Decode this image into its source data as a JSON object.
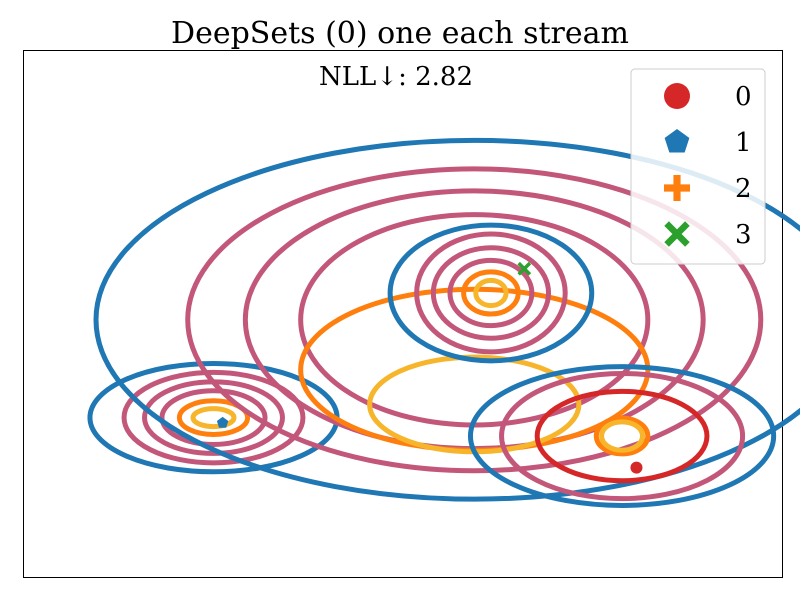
{
  "chart_data": {
    "type": "scatter",
    "title": "DeepSets (0) one each stream",
    "subtitle": "NLL↓: 2.82",
    "grid": false,
    "legend_position": "top-right",
    "legend": [
      {
        "label": "0",
        "marker": "circle",
        "color": "#d62728"
      },
      {
        "label": "1",
        "marker": "pentagon",
        "color": "#1f77b4"
      },
      {
        "label": "2",
        "marker": "plus",
        "color": "#ff7f0e"
      },
      {
        "label": "3",
        "marker": "x",
        "color": "#2ca02c"
      }
    ],
    "points": [
      {
        "series": "0",
        "x": 0.808,
        "y": 0.208
      },
      {
        "series": "1",
        "x": 0.262,
        "y": 0.293
      },
      {
        "series": "3",
        "x": 0.66,
        "y": 0.586
      }
    ],
    "contour_groups": [
      {
        "cx": 0.25,
        "cy": 0.303,
        "rings": [
          {
            "rx": 0.163,
            "ry": 0.103,
            "color": "#1f77b4"
          },
          {
            "rx": 0.118,
            "ry": 0.086,
            "color": "#c2577a"
          },
          {
            "rx": 0.091,
            "ry": 0.068,
            "color": "#c2577a"
          },
          {
            "rx": 0.068,
            "ry": 0.051,
            "color": "#c2577a"
          },
          {
            "rx": 0.045,
            "ry": 0.032,
            "color": "#ff7f0e"
          },
          {
            "rx": 0.027,
            "ry": 0.017,
            "color": "#f7b52c"
          }
        ]
      },
      {
        "cx": 0.594,
        "cy": 0.489,
        "rings": [
          {
            "rx": 0.499,
            "ry": 0.341,
            "color": "#1f77b4"
          },
          {
            "rx": 0.378,
            "ry": 0.287,
            "color": "#c2577a"
          },
          {
            "rx": 0.302,
            "ry": 0.245,
            "color": "#c2577a"
          },
          {
            "rx": 0.229,
            "ry": 0.2,
            "color": "#c2577a"
          }
        ]
      },
      {
        "cx": 0.594,
        "cy": 0.394,
        "rings": [
          {
            "rx": 0.229,
            "ry": 0.153,
            "color": "#ff7f0e"
          }
        ]
      },
      {
        "cx": 0.594,
        "cy": 0.328,
        "rings": [
          {
            "rx": 0.138,
            "ry": 0.09,
            "color": "#f7b52c"
          }
        ]
      },
      {
        "cx": 0.616,
        "cy": 0.54,
        "rings": [
          {
            "rx": 0.133,
            "ry": 0.129,
            "color": "#1f77b4"
          },
          {
            "rx": 0.098,
            "ry": 0.112,
            "color": "#c2577a"
          },
          {
            "rx": 0.076,
            "ry": 0.086,
            "color": "#c2577a"
          },
          {
            "rx": 0.054,
            "ry": 0.062,
            "color": "#c2577a"
          },
          {
            "rx": 0.036,
            "ry": 0.04,
            "color": "#ff7f0e"
          },
          {
            "rx": 0.02,
            "ry": 0.024,
            "color": "#f7b52c"
          }
        ]
      },
      {
        "cx": 0.789,
        "cy": 0.268,
        "rings": [
          {
            "rx": 0.2,
            "ry": 0.132,
            "color": "#1f77b4"
          },
          {
            "rx": 0.159,
            "ry": 0.119,
            "color": "#c2577a"
          },
          {
            "rx": 0.112,
            "ry": 0.085,
            "color": "#d62728"
          },
          {
            "rx": 0.034,
            "ry": 0.034,
            "color": "#ff7f0e"
          },
          {
            "rx": 0.027,
            "ry": 0.027,
            "color": "#f7b52c"
          }
        ]
      }
    ]
  }
}
